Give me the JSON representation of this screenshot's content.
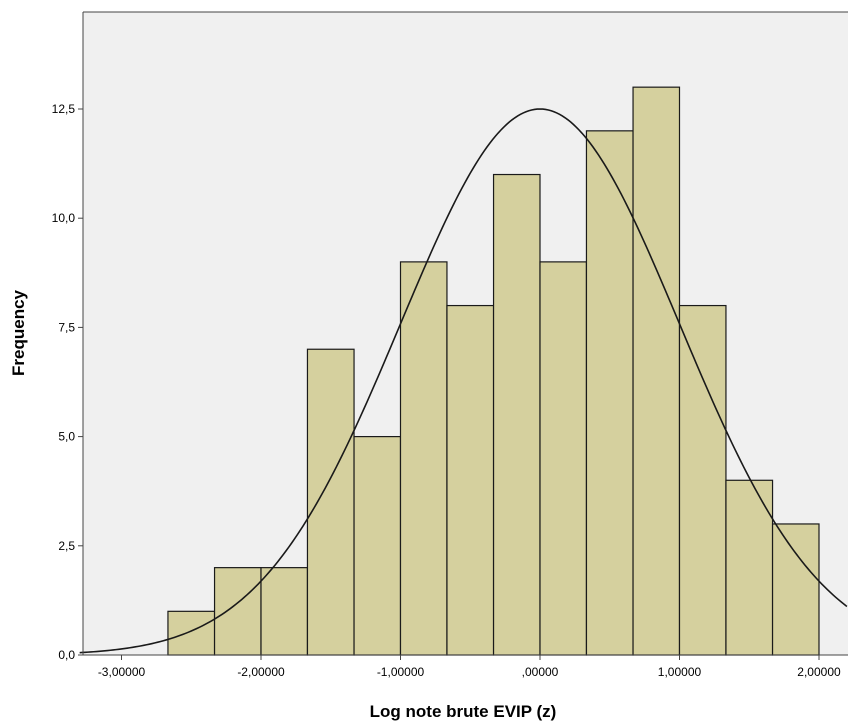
{
  "chart_data": {
    "type": "bar",
    "subtype": "histogram",
    "xlabel": "Log note brute EVIP (z)",
    "ylabel": "Frequency",
    "xlim": [
      -3.3,
      2.2
    ],
    "ylim": [
      0,
      14.9
    ],
    "x_ticks": [
      -3,
      -2,
      -1,
      0,
      1,
      2
    ],
    "x_tick_labels": [
      "-3,00000",
      "-2,00000",
      "-1,00000",
      ",00000",
      "1,00000",
      "2,00000"
    ],
    "y_ticks": [
      0,
      2.5,
      5,
      7.5,
      10,
      12.5
    ],
    "y_tick_labels": [
      "0,0",
      "2,5",
      "5,0",
      "7,5",
      "10,0",
      "12,5"
    ],
    "bin_edges": [
      -2.667,
      -2.333,
      -2.0,
      -1.667,
      -1.333,
      -1.0,
      -0.667,
      -0.333,
      0.0,
      0.333,
      0.667,
      1.0,
      1.333,
      1.667,
      2.0
    ],
    "values": [
      1,
      2,
      2,
      7,
      5,
      9,
      8,
      11,
      9,
      12,
      13,
      8,
      4,
      3
    ],
    "normal_curve": {
      "mean": 0.0,
      "sd": 1.0,
      "peak": 12.5
    },
    "bar_fill": "#d5d09e",
    "bar_stroke": "#1a1a1a",
    "plot_background": "#f0f0f0",
    "curve_color": "#1a1a1a"
  }
}
